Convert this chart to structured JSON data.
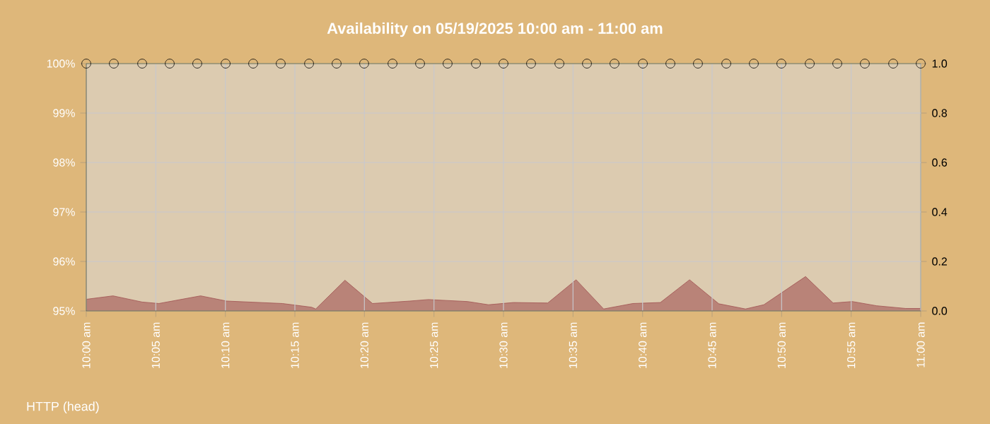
{
  "chart_data": {
    "type": "line",
    "title": "Availability on 05/19/2025 10:00 am - 11:00 am",
    "annotations": [
      "HTTP (head)"
    ],
    "xlim": [
      10,
      11
    ],
    "xticks": [
      {
        "value": 10,
        "label": "10:00 am"
      },
      {
        "value": 10.0833,
        "label": "10:05 am"
      },
      {
        "value": 10.1667,
        "label": "10:10 am"
      },
      {
        "value": 10.25,
        "label": "10:15 am"
      },
      {
        "value": 10.3333,
        "label": "10:20 am"
      },
      {
        "value": 10.4167,
        "label": "10:25 am"
      },
      {
        "value": 10.5,
        "label": "10:30 am"
      },
      {
        "value": 10.5833,
        "label": "10:35 am"
      },
      {
        "value": 10.6667,
        "label": "10:40 am"
      },
      {
        "value": 10.75,
        "label": "10:45 am"
      },
      {
        "value": 10.8333,
        "label": "10:50 am"
      },
      {
        "value": 10.9167,
        "label": "10:55 am"
      },
      {
        "value": 11,
        "label": "11:00 am"
      }
    ],
    "ylim": [
      95,
      100
    ],
    "yticks": [
      {
        "value": 95,
        "label": "95%"
      },
      {
        "value": 96,
        "label": "96%"
      },
      {
        "value": 97,
        "label": "97%"
      },
      {
        "value": 98,
        "label": "98%"
      },
      {
        "value": 99,
        "label": "99%"
      },
      {
        "value": 100,
        "label": "100%"
      }
    ],
    "y2lim": [
      0,
      1
    ],
    "y2ticks": [
      {
        "value": 0,
        "label": "0.0"
      },
      {
        "value": 0.2,
        "label": "0.2"
      },
      {
        "value": 0.4,
        "label": "0.4"
      },
      {
        "value": 0.6,
        "label": "0.6"
      },
      {
        "value": 0.8,
        "label": "0.8"
      },
      {
        "value": 1,
        "label": "1.0"
      }
    ],
    "grid": true,
    "series": [
      {
        "type": "area",
        "axis": "y2",
        "color": "#b98378",
        "marker": "none",
        "x": [
          10.0,
          10.032,
          10.067,
          10.087,
          10.137,
          10.168,
          10.235,
          10.27,
          10.275,
          10.31,
          10.343,
          10.388,
          10.41,
          10.457,
          10.482,
          10.512,
          10.553,
          10.587,
          10.62,
          10.655,
          10.688,
          10.723,
          10.758,
          10.79,
          10.812,
          10.862,
          10.895,
          10.918,
          10.947,
          10.982,
          11.0
        ],
        "values": [
          0.047,
          0.061,
          0.036,
          0.03,
          0.061,
          0.04,
          0.03,
          0.015,
          0.008,
          0.124,
          0.03,
          0.04,
          0.046,
          0.038,
          0.025,
          0.034,
          0.032,
          0.126,
          0.008,
          0.03,
          0.034,
          0.126,
          0.029,
          0.008,
          0.025,
          0.139,
          0.032,
          0.038,
          0.021,
          0.01,
          0.01
        ]
      },
      {
        "axis": "y",
        "color": "#5a5a2a",
        "marker": "circle",
        "line_style": "solid",
        "x": [
          10,
          10.033,
          10.067,
          10.1,
          10.133,
          10.167,
          10.2,
          10.233,
          10.267,
          10.3,
          10.333,
          10.367,
          10.4,
          10.433,
          10.467,
          10.5,
          10.533,
          10.567,
          10.6,
          10.633,
          10.667,
          10.7,
          10.733,
          10.767,
          10.8,
          10.833,
          10.867,
          10.9,
          10.933,
          10.967,
          11
        ],
        "values": [
          100,
          100,
          100,
          100,
          100,
          100,
          100,
          100,
          100,
          100,
          100,
          100,
          100,
          100,
          100,
          100,
          100,
          100,
          100,
          100,
          100,
          100,
          100,
          100,
          100,
          100,
          100,
          100,
          100,
          100,
          100
        ]
      }
    ]
  }
}
